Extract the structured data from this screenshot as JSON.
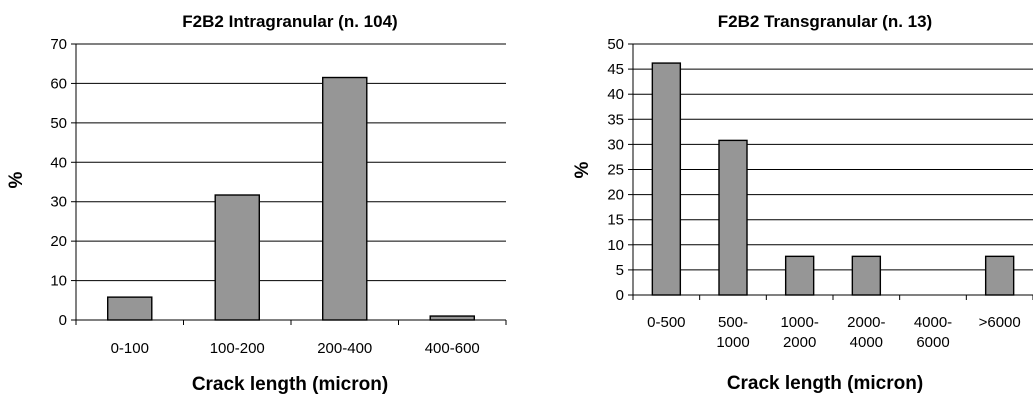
{
  "chart_data": [
    {
      "type": "bar",
      "title": "F2B2 Intragranular (n. 104)",
      "xlabel": "Crack length (micron)",
      "ylabel": "%",
      "categories": [
        "0-100",
        "100-200",
        "200-400",
        "400-600"
      ],
      "values": [
        5.8,
        31.7,
        61.5,
        1.0
      ],
      "ylim": [
        0,
        70
      ],
      "yticks": [
        "0",
        "10",
        "20",
        "30",
        "40",
        "50",
        "60",
        "70"
      ],
      "grid": true,
      "legend": "none"
    },
    {
      "type": "bar",
      "title": "F2B2 Transgranular (n. 13)",
      "xlabel": "Crack length (micron)",
      "ylabel": "%",
      "categories": [
        [
          "0-500"
        ],
        [
          "500-",
          "1000"
        ],
        [
          "1000-",
          "2000"
        ],
        [
          "2000-",
          "4000"
        ],
        [
          "4000-",
          "6000"
        ],
        [
          ">6000"
        ]
      ],
      "values": [
        46.2,
        30.8,
        7.7,
        7.7,
        0,
        7.7
      ],
      "ylim": [
        0,
        50
      ],
      "yticks": [
        "0",
        "5",
        "10",
        "15",
        "20",
        "25",
        "30",
        "35",
        "40",
        "45",
        "50"
      ],
      "grid": true,
      "legend": "none"
    }
  ]
}
